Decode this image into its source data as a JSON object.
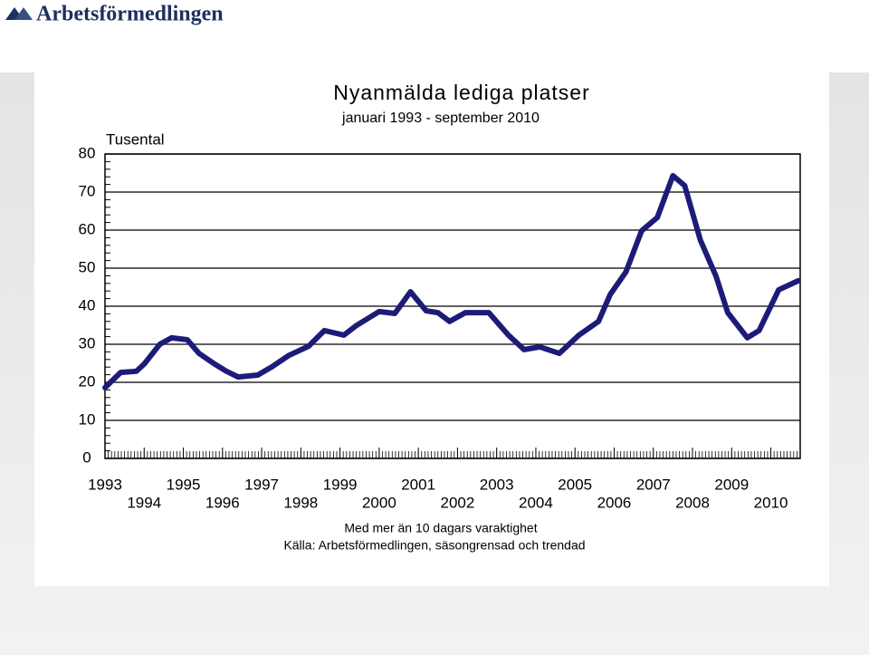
{
  "logo": "Arbetsförmedlingen",
  "chart_data": {
    "type": "line",
    "title": "Nyanmälda lediga platser",
    "subtitle": "januari 1993 - september 2010",
    "y_label": "Tusental",
    "notes": [
      "Med mer än 10 dagars varaktighet",
      "Källa: Arbetsförmedlingen, säsongrensad och trendad"
    ],
    "x": [
      1993.0,
      1993.4,
      1993.8,
      1994.0,
      1994.4,
      1994.7,
      1995.1,
      1995.4,
      1995.8,
      1996.1,
      1996.4,
      1996.9,
      1997.25,
      1997.7,
      1998.2,
      1998.6,
      1999.1,
      1999.4,
      2000.0,
      2000.4,
      2000.8,
      2001.2,
      2001.5,
      2001.8,
      2002.2,
      2002.8,
      2003.3,
      2003.7,
      2004.1,
      2004.6,
      2005.1,
      2005.6,
      2005.9,
      2006.3,
      2006.7,
      2007.1,
      2007.5,
      2007.8,
      2008.2,
      2008.6,
      2008.9,
      2009.4,
      2009.7,
      2010.2,
      2010.7
    ],
    "series": [
      {
        "name": "Nyanmälda lediga platser",
        "color": "#1c1c78",
        "values": [
          18.6,
          22.6,
          22.9,
          24.8,
          30,
          31.7,
          31.2,
          27.6,
          24.8,
          22.9,
          21.4,
          21.9,
          24,
          27.1,
          29.5,
          33.6,
          32.4,
          34.8,
          38.6,
          38.1,
          43.8,
          38.8,
          38.3,
          36,
          38.3,
          38.3,
          32.4,
          28.6,
          29.3,
          27.6,
          32.4,
          36,
          43.1,
          49,
          59.8,
          63.3,
          74.3,
          71.7,
          57.4,
          47.9,
          38.3,
          31.7,
          33.6,
          44.3,
          46.7
        ]
      }
    ],
    "xlim": [
      1993,
      2010.75
    ],
    "xticks": [
      1993,
      1994,
      1995,
      1996,
      1997,
      1998,
      1999,
      2000,
      2001,
      2002,
      2003,
      2004,
      2005,
      2006,
      2007,
      2008,
      2009,
      2010
    ],
    "ylim": [
      0,
      80
    ],
    "yticks": [
      0,
      10,
      20,
      30,
      40,
      50,
      60,
      70,
      80
    ],
    "grid": true
  }
}
